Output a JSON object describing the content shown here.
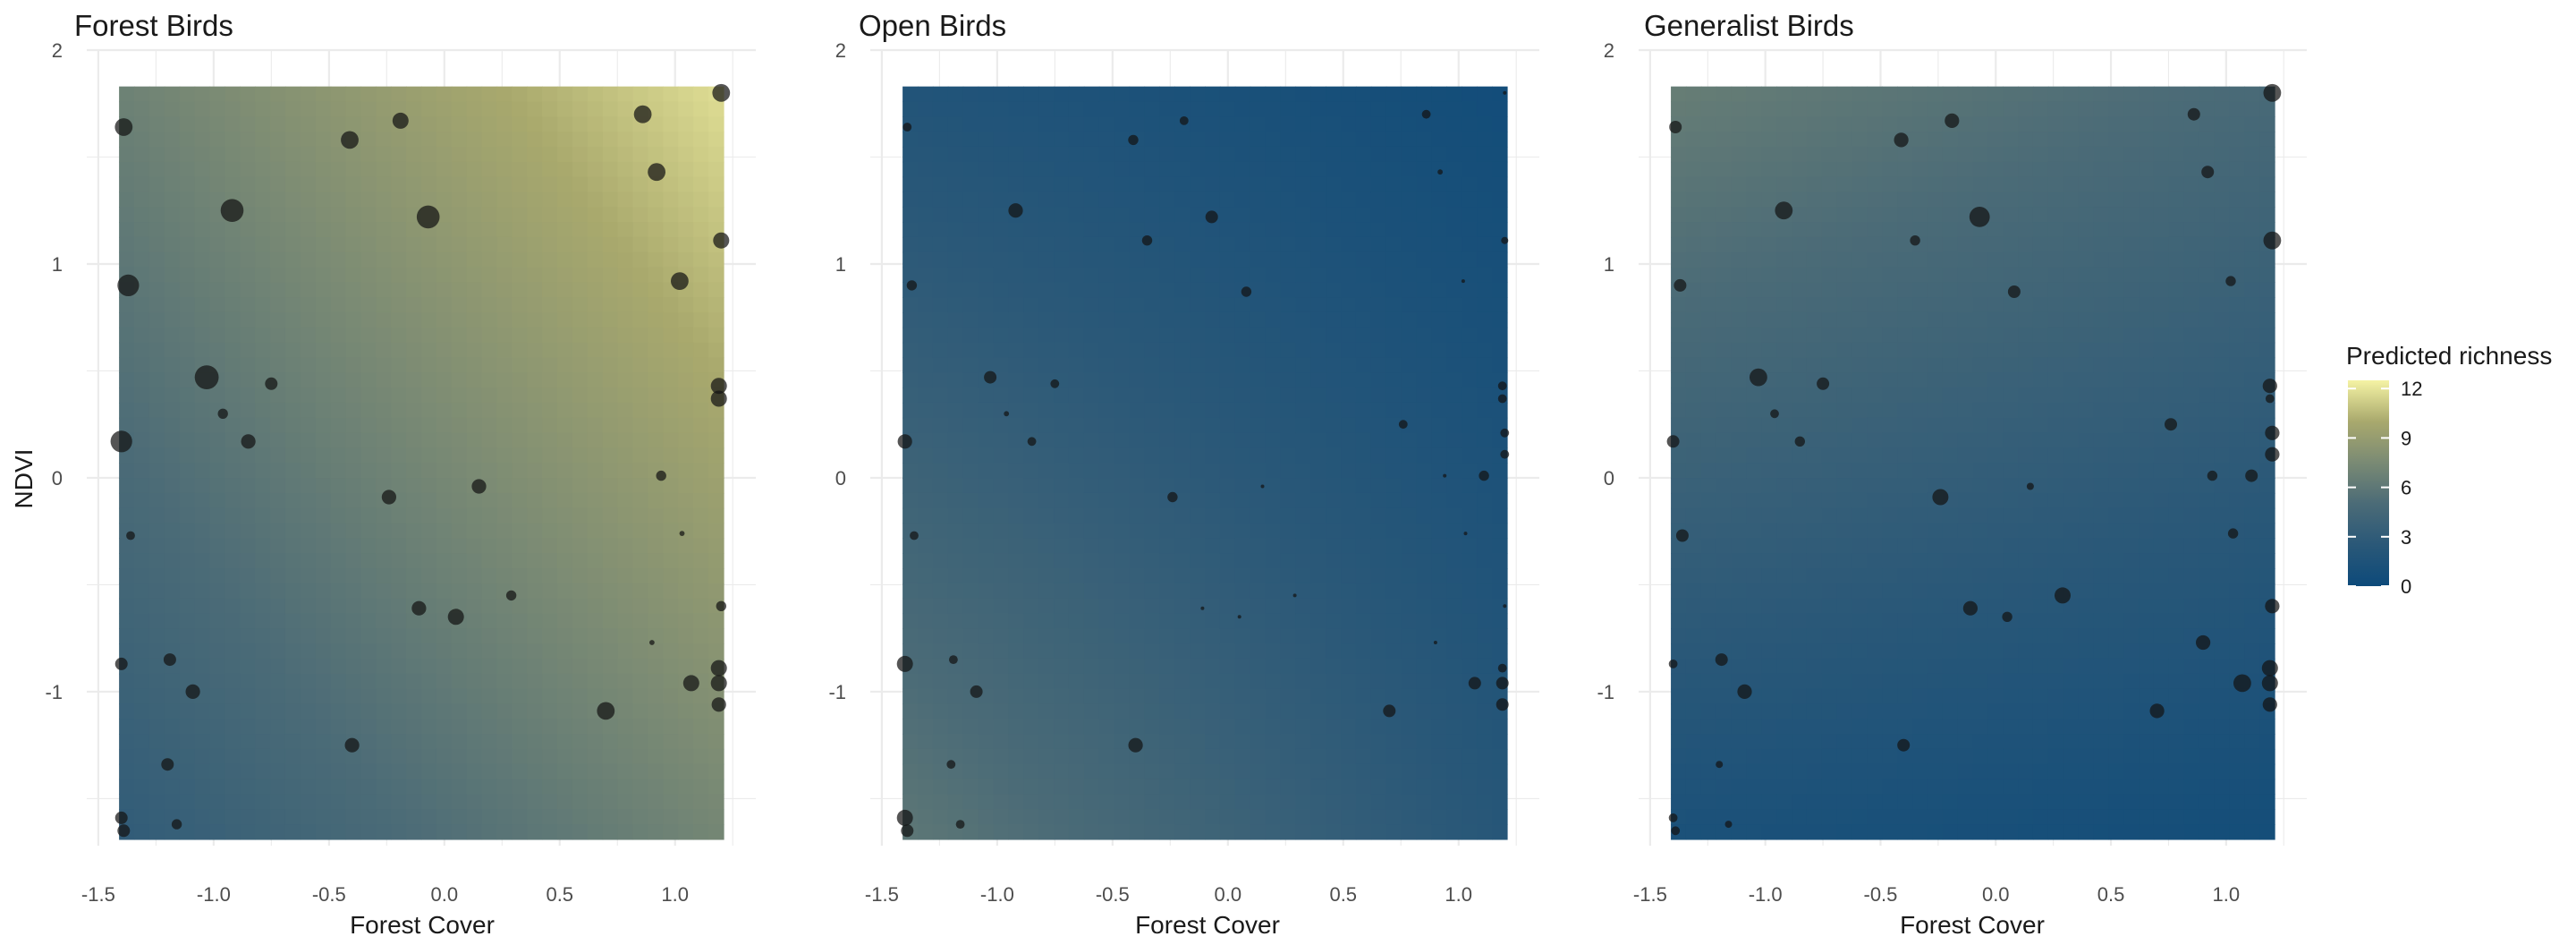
{
  "chart_data": [
    {
      "type": "heatmap",
      "title": "Forest Birds",
      "xlabel": "Forest Cover",
      "ylabel": "NDVI",
      "xlim": [
        -1.55,
        1.35
      ],
      "ylim": [
        -1.72,
        2.0
      ],
      "xticks": [
        -1.5,
        -1.0,
        -0.5,
        0.0,
        0.5,
        1.0
      ],
      "xtick_labels": [
        "-1.5",
        "-1.0",
        "-0.5",
        "0.0",
        "0.5",
        "1.0"
      ],
      "yticks": [
        -1,
        0,
        1,
        2
      ],
      "ytick_labels": [
        "-1",
        "0",
        "1",
        "2"
      ],
      "grid": true,
      "surface": {
        "x_range": [
          -1.41,
          1.21
        ],
        "y_range": [
          -1.69,
          1.83
        ],
        "corner_values": {
          "bottom_left": 3.0,
          "bottom_right": 7.2,
          "top_left": 6.8,
          "top_right": 11.8
        }
      },
      "points_size_scale": [
        0,
        0.24
      ],
      "points": [
        {
          "x": -1.39,
          "y": 1.64,
          "s": 0.12
        },
        {
          "x": -0.19,
          "y": 1.67,
          "s": 0.1
        },
        {
          "x": 0.86,
          "y": 1.7,
          "s": 0.12
        },
        {
          "x": 1.2,
          "y": 1.8,
          "s": 0.12
        },
        {
          "x": -0.41,
          "y": 1.58,
          "s": 0.12
        },
        {
          "x": 0.92,
          "y": 1.43,
          "s": 0.12
        },
        {
          "x": -0.92,
          "y": 1.25,
          "s": 0.2
        },
        {
          "x": -0.07,
          "y": 1.22,
          "s": 0.2
        },
        {
          "x": 1.2,
          "y": 1.11,
          "s": 0.1
        },
        {
          "x": -1.37,
          "y": 0.9,
          "s": 0.18
        },
        {
          "x": 1.02,
          "y": 0.92,
          "s": 0.12
        },
        {
          "x": -1.03,
          "y": 0.47,
          "s": 0.22
        },
        {
          "x": -0.75,
          "y": 0.44,
          "s": 0.06
        },
        {
          "x": 1.19,
          "y": 0.43,
          "s": 0.1
        },
        {
          "x": 1.19,
          "y": 0.37,
          "s": 0.1
        },
        {
          "x": -0.96,
          "y": 0.3,
          "s": 0.04
        },
        {
          "x": -1.4,
          "y": 0.17,
          "s": 0.18
        },
        {
          "x": -0.85,
          "y": 0.17,
          "s": 0.08
        },
        {
          "x": 0.94,
          "y": 0.01,
          "s": 0.04
        },
        {
          "x": 0.15,
          "y": -0.04,
          "s": 0.08
        },
        {
          "x": -0.24,
          "y": -0.09,
          "s": 0.08
        },
        {
          "x": -1.36,
          "y": -0.27,
          "s": 0.03
        },
        {
          "x": 1.03,
          "y": -0.26,
          "s": 0.01
        },
        {
          "x": 0.29,
          "y": -0.55,
          "s": 0.04
        },
        {
          "x": -0.11,
          "y": -0.61,
          "s": 0.08
        },
        {
          "x": 0.05,
          "y": -0.65,
          "s": 0.1
        },
        {
          "x": 1.2,
          "y": -0.6,
          "s": 0.04
        },
        {
          "x": 0.9,
          "y": -0.77,
          "s": 0.01
        },
        {
          "x": -1.4,
          "y": -0.87,
          "s": 0.06
        },
        {
          "x": -1.19,
          "y": -0.85,
          "s": 0.06
        },
        {
          "x": 1.19,
          "y": -0.89,
          "s": 0.1
        },
        {
          "x": -1.09,
          "y": -1.0,
          "s": 0.08
        },
        {
          "x": 1.07,
          "y": -0.96,
          "s": 0.1
        },
        {
          "x": 1.19,
          "y": -0.96,
          "s": 0.1
        },
        {
          "x": 0.7,
          "y": -1.09,
          "s": 0.12
        },
        {
          "x": 1.19,
          "y": -1.06,
          "s": 0.08
        },
        {
          "x": -0.4,
          "y": -1.25,
          "s": 0.08
        },
        {
          "x": -1.2,
          "y": -1.34,
          "s": 0.06
        },
        {
          "x": -1.4,
          "y": -1.59,
          "s": 0.06
        },
        {
          "x": -1.16,
          "y": -1.62,
          "s": 0.04
        },
        {
          "x": -1.39,
          "y": -1.65,
          "s": 0.06
        }
      ]
    },
    {
      "type": "heatmap",
      "title": "Open Birds",
      "xlabel": "Forest Cover",
      "ylabel": "",
      "xlim": [
        -1.55,
        1.35
      ],
      "ylim": [
        -1.72,
        2.0
      ],
      "xticks": [
        -1.5,
        -1.0,
        -0.5,
        0.0,
        0.5,
        1.0
      ],
      "xtick_labels": [
        "-1.5",
        "-1.0",
        "-0.5",
        "0.0",
        "0.5",
        "1.0"
      ],
      "yticks": [
        -1,
        0,
        1,
        2
      ],
      "ytick_labels": [
        "-1",
        "0",
        "1",
        "2"
      ],
      "grid": true,
      "surface": {
        "x_range": [
          -1.41,
          1.21
        ],
        "y_range": [
          -1.69,
          1.83
        ],
        "corner_values": {
          "bottom_left": 6.0,
          "bottom_right": 2.2,
          "top_left": 1.8,
          "top_right": 0.5
        }
      },
      "points_size_scale": [
        0,
        0.24
      ],
      "points": [
        {
          "x": -1.39,
          "y": 1.64,
          "s": 0.03
        },
        {
          "x": -0.19,
          "y": 1.67,
          "s": 0.03
        },
        {
          "x": 0.86,
          "y": 1.7,
          "s": 0.03
        },
        {
          "x": 1.2,
          "y": 1.8,
          "s": 0.005
        },
        {
          "x": -0.41,
          "y": 1.58,
          "s": 0.04
        },
        {
          "x": 0.92,
          "y": 1.43,
          "s": 0.01
        },
        {
          "x": -0.92,
          "y": 1.25,
          "s": 0.08
        },
        {
          "x": -0.07,
          "y": 1.22,
          "s": 0.06
        },
        {
          "x": 1.2,
          "y": 1.11,
          "s": 0.02
        },
        {
          "x": -0.35,
          "y": 1.11,
          "s": 0.04
        },
        {
          "x": -1.37,
          "y": 0.9,
          "s": 0.04
        },
        {
          "x": 0.08,
          "y": 0.87,
          "s": 0.04
        },
        {
          "x": 1.02,
          "y": 0.92,
          "s": 0.005
        },
        {
          "x": -1.03,
          "y": 0.47,
          "s": 0.06
        },
        {
          "x": -0.75,
          "y": 0.44,
          "s": 0.03
        },
        {
          "x": 1.19,
          "y": 0.43,
          "s": 0.03
        },
        {
          "x": 1.19,
          "y": 0.37,
          "s": 0.03
        },
        {
          "x": -0.96,
          "y": 0.3,
          "s": 0.01
        },
        {
          "x": 0.76,
          "y": 0.25,
          "s": 0.03
        },
        {
          "x": 1.2,
          "y": 0.21,
          "s": 0.03
        },
        {
          "x": -1.4,
          "y": 0.17,
          "s": 0.08
        },
        {
          "x": -0.85,
          "y": 0.17,
          "s": 0.03
        },
        {
          "x": 1.2,
          "y": 0.11,
          "s": 0.03
        },
        {
          "x": 0.94,
          "y": 0.01,
          "s": 0.005
        },
        {
          "x": 1.11,
          "y": 0.01,
          "s": 0.04
        },
        {
          "x": 0.15,
          "y": -0.04,
          "s": 0.005
        },
        {
          "x": -0.24,
          "y": -0.09,
          "s": 0.04
        },
        {
          "x": -1.36,
          "y": -0.27,
          "s": 0.03
        },
        {
          "x": 1.03,
          "y": -0.26,
          "s": 0.005
        },
        {
          "x": 0.29,
          "y": -0.55,
          "s": 0.005
        },
        {
          "x": -0.11,
          "y": -0.61,
          "s": 0.005
        },
        {
          "x": 0.05,
          "y": -0.65,
          "s": 0.005
        },
        {
          "x": 1.2,
          "y": -0.6,
          "s": 0.005
        },
        {
          "x": 0.9,
          "y": -0.77,
          "s": 0.005
        },
        {
          "x": -1.4,
          "y": -0.87,
          "s": 0.1
        },
        {
          "x": -1.19,
          "y": -0.85,
          "s": 0.03
        },
        {
          "x": 1.19,
          "y": -0.89,
          "s": 0.03
        },
        {
          "x": -1.09,
          "y": -1.0,
          "s": 0.06
        },
        {
          "x": 1.07,
          "y": -0.96,
          "s": 0.06
        },
        {
          "x": 1.19,
          "y": -0.96,
          "s": 0.06
        },
        {
          "x": 0.7,
          "y": -1.09,
          "s": 0.06
        },
        {
          "x": 1.19,
          "y": -1.06,
          "s": 0.06
        },
        {
          "x": -0.4,
          "y": -1.25,
          "s": 0.08
        },
        {
          "x": -1.2,
          "y": -1.34,
          "s": 0.03
        },
        {
          "x": -1.4,
          "y": -1.59,
          "s": 0.1
        },
        {
          "x": -1.16,
          "y": -1.62,
          "s": 0.03
        },
        {
          "x": -1.39,
          "y": -1.65,
          "s": 0.06
        }
      ]
    },
    {
      "type": "heatmap",
      "title": "Generalist Birds",
      "xlabel": "Forest Cover",
      "ylabel": "",
      "xlim": [
        -1.55,
        1.35
      ],
      "ylim": [
        -1.72,
        2.0
      ],
      "xticks": [
        -1.5,
        -1.0,
        -0.5,
        0.0,
        0.5,
        1.0
      ],
      "xtick_labels": [
        "-1.5",
        "-1.0",
        "-0.5",
        "0.0",
        "0.5",
        "1.0"
      ],
      "yticks": [
        -1,
        0,
        1,
        2
      ],
      "ytick_labels": [
        "-1",
        "0",
        "1",
        "2"
      ],
      "grid": true,
      "surface": {
        "x_range": [
          -1.41,
          1.21
        ],
        "y_range": [
          -1.69,
          1.83
        ],
        "corner_values": {
          "bottom_left": 1.2,
          "bottom_right": 0.6,
          "top_left": 6.5,
          "top_right": 4.8
        }
      },
      "points_size_scale": [
        0,
        0.24
      ],
      "points": [
        {
          "x": -1.39,
          "y": 1.64,
          "s": 0.06
        },
        {
          "x": -0.19,
          "y": 1.67,
          "s": 0.08
        },
        {
          "x": 0.86,
          "y": 1.7,
          "s": 0.06
        },
        {
          "x": 1.2,
          "y": 1.8,
          "s": 0.12
        },
        {
          "x": -0.41,
          "y": 1.58,
          "s": 0.08
        },
        {
          "x": 0.92,
          "y": 1.43,
          "s": 0.06
        },
        {
          "x": -0.92,
          "y": 1.25,
          "s": 0.12
        },
        {
          "x": -0.07,
          "y": 1.22,
          "s": 0.16
        },
        {
          "x": 1.2,
          "y": 1.11,
          "s": 0.12
        },
        {
          "x": -0.35,
          "y": 1.11,
          "s": 0.04
        },
        {
          "x": -1.37,
          "y": 0.9,
          "s": 0.06
        },
        {
          "x": 0.08,
          "y": 0.87,
          "s": 0.06
        },
        {
          "x": 1.02,
          "y": 0.92,
          "s": 0.04
        },
        {
          "x": -1.03,
          "y": 0.47,
          "s": 0.12
        },
        {
          "x": -0.75,
          "y": 0.44,
          "s": 0.06
        },
        {
          "x": 1.19,
          "y": 0.43,
          "s": 0.08
        },
        {
          "x": 1.19,
          "y": 0.37,
          "s": 0.03
        },
        {
          "x": -0.96,
          "y": 0.3,
          "s": 0.03
        },
        {
          "x": 0.76,
          "y": 0.25,
          "s": 0.06
        },
        {
          "x": 1.2,
          "y": 0.21,
          "s": 0.08
        },
        {
          "x": -1.4,
          "y": 0.17,
          "s": 0.06
        },
        {
          "x": -0.85,
          "y": 0.17,
          "s": 0.04
        },
        {
          "x": 1.2,
          "y": 0.11,
          "s": 0.08
        },
        {
          "x": 0.94,
          "y": 0.01,
          "s": 0.04
        },
        {
          "x": 1.11,
          "y": 0.01,
          "s": 0.06
        },
        {
          "x": 0.15,
          "y": -0.04,
          "s": 0.02
        },
        {
          "x": -0.24,
          "y": -0.09,
          "s": 0.1
        },
        {
          "x": -1.36,
          "y": -0.27,
          "s": 0.06
        },
        {
          "x": 1.03,
          "y": -0.26,
          "s": 0.04
        },
        {
          "x": 0.29,
          "y": -0.55,
          "s": 0.1
        },
        {
          "x": -0.11,
          "y": -0.61,
          "s": 0.08
        },
        {
          "x": 0.05,
          "y": -0.65,
          "s": 0.04
        },
        {
          "x": 1.2,
          "y": -0.6,
          "s": 0.08
        },
        {
          "x": 0.9,
          "y": -0.77,
          "s": 0.08
        },
        {
          "x": -1.4,
          "y": -0.87,
          "s": 0.03
        },
        {
          "x": -1.19,
          "y": -0.85,
          "s": 0.06
        },
        {
          "x": 1.19,
          "y": -0.89,
          "s": 0.1
        },
        {
          "x": -1.09,
          "y": -1.0,
          "s": 0.08
        },
        {
          "x": 1.07,
          "y": -0.96,
          "s": 0.12
        },
        {
          "x": 1.19,
          "y": -0.96,
          "s": 0.1
        },
        {
          "x": 0.7,
          "y": -1.09,
          "s": 0.08
        },
        {
          "x": 1.19,
          "y": -1.06,
          "s": 0.08
        },
        {
          "x": -0.4,
          "y": -1.25,
          "s": 0.06
        },
        {
          "x": -1.2,
          "y": -1.34,
          "s": 0.02
        },
        {
          "x": -1.4,
          "y": -1.59,
          "s": 0.03
        },
        {
          "x": -1.16,
          "y": -1.62,
          "s": 0.02
        },
        {
          "x": -1.39,
          "y": -1.65,
          "s": 0.03
        }
      ]
    }
  ],
  "legend": {
    "title": "Predicted richness",
    "limits": [
      0,
      12.5
    ],
    "ticks": [
      0,
      3,
      6,
      9,
      12
    ],
    "tick_labels": [
      "0",
      "3",
      "6",
      "9",
      "12"
    ],
    "colors": [
      "#0d4a7a",
      "#2a5878",
      "#4b6b77",
      "#7a8a74",
      "#a9a96d",
      "#f5f3a4"
    ]
  },
  "colors": {
    "grid": "#ebebeb",
    "text": "#1a1a1a",
    "tick_text": "#4d4d4d",
    "point_fill": "#141414",
    "point_opacity": 0.72
  }
}
